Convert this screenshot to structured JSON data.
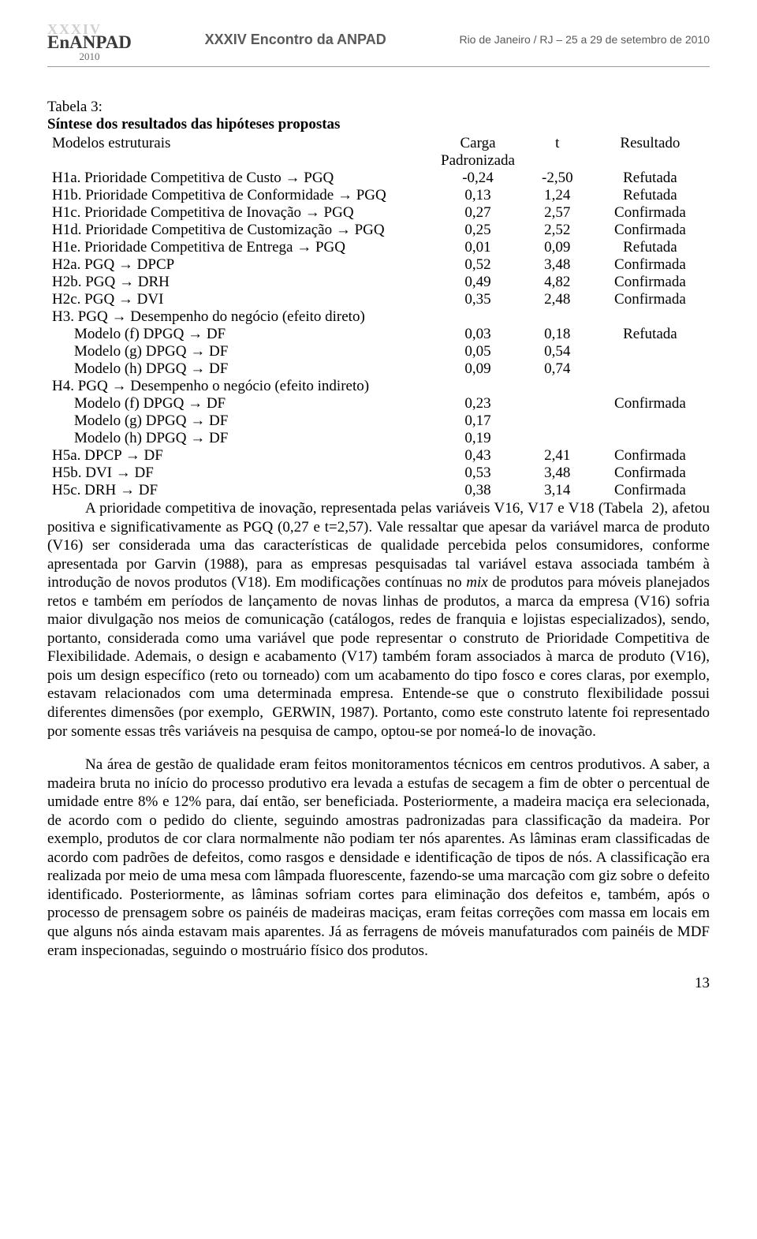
{
  "header": {
    "logo_top": "XXXIV",
    "logo_main": "EnANPAD",
    "logo_year": "2010",
    "center": "XXXIV Encontro da ANPAD",
    "right": "Rio de Janeiro / RJ – 25 a 29 de setembro de 2010"
  },
  "table": {
    "caption_line1": "Tabela 3:",
    "caption_line2": "Síntese dos resultados das hipóteses propostas",
    "columns": {
      "model": "Modelos estruturais",
      "carga_l1": "Carga",
      "carga_l2": "Padronizada",
      "t": "t",
      "result": "Resultado"
    },
    "rows": [
      {
        "label": "H1a. Prioridade Competitiva de Custo → PGQ",
        "carga": "-0,24",
        "t": "-2,50",
        "res": "Refutada"
      },
      {
        "label": "H1b. Prioridade Competitiva de Conformidade → PGQ",
        "carga": "0,13",
        "t": "1,24",
        "res": "Refutada"
      },
      {
        "label": "H1c. Prioridade Competitiva de Inovação → PGQ",
        "carga": "0,27",
        "t": "2,57",
        "res": "Confirmada"
      },
      {
        "label": "H1d. Prioridade Competitiva de Customização → PGQ",
        "carga": "0,25",
        "t": "2,52",
        "res": "Confirmada"
      },
      {
        "label": "H1e. Prioridade Competitiva de Entrega → PGQ",
        "carga": "0,01",
        "t": "0,09",
        "res": "Refutada"
      },
      {
        "label": "H2a. PGQ → DPCP",
        "carga": "0,52",
        "t": "3,48",
        "res": "Confirmada"
      },
      {
        "label": "H2b. PGQ → DRH",
        "carga": "0,49",
        "t": "4,82",
        "res": "Confirmada"
      },
      {
        "label": "H2c. PGQ → DVI",
        "carga": "0,35",
        "t": "2,48",
        "res": "Confirmada"
      }
    ],
    "h3_header": "H3. PGQ → Desempenho do negócio (efeito direto)",
    "h3": [
      {
        "label": "Modelo (f) DPGQ → DF",
        "carga": "0,03",
        "t": "0,18"
      },
      {
        "label": "Modelo (g) DPGQ → DF",
        "carga": "0,05",
        "t": "0,54"
      },
      {
        "label": "Modelo (h) DPGQ → DF",
        "carga": "0,09",
        "t": "0,74"
      }
    ],
    "h3_res": "Refutada",
    "h4_header": "H4. PGQ → Desempenho o negócio (efeito indireto)",
    "h4": [
      {
        "label": "Modelo (f) DPGQ → DF",
        "carga": "0,23"
      },
      {
        "label": "Modelo (g) DPGQ → DF",
        "carga": "0,17"
      },
      {
        "label": "Modelo (h) DPGQ → DF",
        "carga": "0,19"
      }
    ],
    "h4_res": "Confirmada",
    "tail": [
      {
        "label": "H5a. DPCP → DF",
        "carga": "0,43",
        "t": "2,41",
        "res": "Confirmada"
      },
      {
        "label": "H5b. DVI → DF",
        "carga": "0,53",
        "t": "3,48",
        "res": "Confirmada"
      },
      {
        "label": "H5c. DRH → DF",
        "carga": "0,38",
        "t": "3,14",
        "res": "Confirmada"
      }
    ]
  },
  "body": {
    "p1a": "A prioridade competitiva de inovação, representada pelas variáveis V16, V17 e V18 (Tabela  2), afetou positiva e significativamente as PGQ (0,27 e t=2,57). Vale ressaltar que apesar da variável marca de produto (V16) ser considerada uma das características de qualidade percebida pelos consumidores, conforme apresentada por Garvin (1988), para as empresas pesquisadas tal variável estava associada também à introdução de novos produtos (V18). Em modificações contínuas no ",
    "p1_mix": "mix",
    "p1b": " de produtos para móveis planejados retos e também em períodos de lançamento de novas linhas de produtos, a marca da empresa (V16) sofria maior divulgação nos meios de comunicação (catálogos, redes de franquia e lojistas especializados), sendo, portanto, considerada como uma variável que pode representar o construto de Prioridade Competitiva de Flexibilidade. Ademais, o design e acabamento (V17) também foram associados à marca de produto (V16), pois um design específico (reto ou torneado) com um acabamento do tipo fosco e cores claras, por exemplo, estavam relacionados com uma determinada empresa. Entende-se que o construto flexibilidade possui diferentes dimensões (por exemplo,  GERWIN, 1987). Portanto, como este construto latente foi representado por somente essas três variáveis na pesquisa de campo, optou-se por nomeá-lo de inovação.",
    "p2": "Na área de gestão de qualidade eram feitos monitoramentos técnicos em centros produtivos. A saber, a madeira bruta no início do processo produtivo era levada a estufas de secagem a fim de obter o percentual de umidade entre 8% e 12% para, daí então, ser beneficiada. Posteriormente, a madeira maciça era selecionada, de acordo com o pedido do cliente, seguindo amostras padronizadas para classificação da madeira. Por exemplo, produtos de cor clara normalmente não podiam ter nós aparentes. As lâminas eram classificadas de acordo com padrões de defeitos, como rasgos e densidade e identificação de tipos de nós. A classificação era realizada por meio de uma mesa com lâmpada fluorescente, fazendo-se uma marcação com giz sobre o defeito identificado. Posteriormente, as lâminas sofriam cortes para eliminação dos defeitos e, também, após o processo de prensagem sobre os painéis de madeiras maciças, eram feitas correções com massa em locais em que alguns nós ainda estavam mais aparentes. Já as ferragens de móveis manufaturados com painéis de MDF eram inspecionadas, seguindo o mostruário físico dos produtos."
  },
  "page_number": "13",
  "style": {
    "font_body_pt": 19,
    "colors": {
      "text": "#000000",
      "bg": "#ffffff",
      "header_gray": "#5a5a5a",
      "rule": "#9a9a9a"
    }
  }
}
